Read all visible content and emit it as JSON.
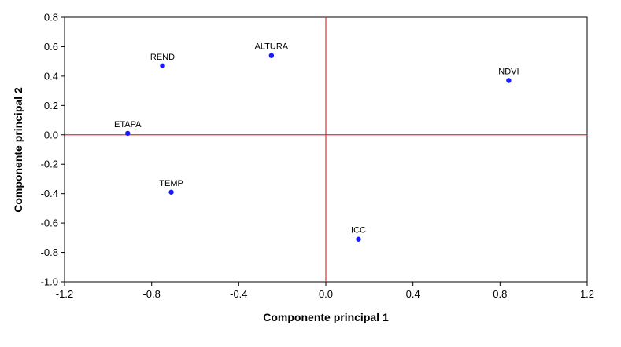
{
  "chart_data": {
    "type": "scatter",
    "title": "",
    "xlabel": "Componente principal 1",
    "ylabel": "Componente principal 2",
    "xlim": [
      -1.2,
      1.2
    ],
    "ylim": [
      -1.0,
      0.8
    ],
    "xticks": [
      -1.2,
      -0.8,
      -0.4,
      0.0,
      0.4,
      0.8,
      1.2
    ],
    "xtick_labels": [
      "-1.2",
      "-0.8",
      "-0.4",
      "0.0",
      "0.4",
      "0.8",
      "1.2"
    ],
    "yticks": [
      0.8,
      0.6,
      0.4,
      0.2,
      0.0,
      -0.2,
      -0.4,
      -0.6,
      -0.8,
      -1.0
    ],
    "ytick_labels": [
      "0.8",
      "0.6",
      "0.4",
      "0.2",
      "0.0",
      "-0.2",
      "-0.4",
      "-0.6",
      "-0.8",
      "-1.0"
    ],
    "points": [
      {
        "label": "REND",
        "x": -0.75,
        "y": 0.47
      },
      {
        "label": "ALTURA",
        "x": -0.25,
        "y": 0.54
      },
      {
        "label": "NDVI",
        "x": 0.84,
        "y": 0.37
      },
      {
        "label": "ETAPA",
        "x": -0.91,
        "y": 0.01
      },
      {
        "label": "TEMP",
        "x": -0.71,
        "y": -0.39
      },
      {
        "label": "ICC",
        "x": 0.15,
        "y": -0.71
      }
    ],
    "reference_lines": {
      "x": 0.0,
      "y": 0.0,
      "color": "#e0303a"
    },
    "point_color": "#1a1aff",
    "grid": false,
    "legend": "none"
  }
}
